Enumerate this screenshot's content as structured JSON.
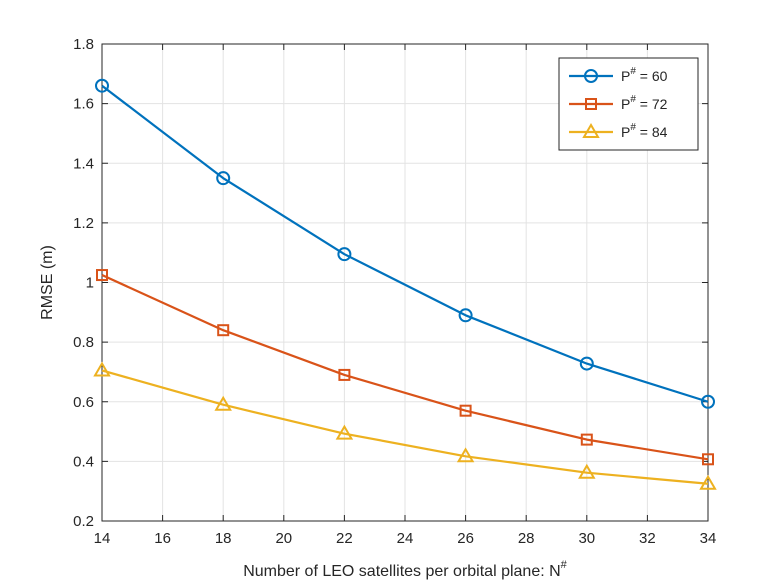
{
  "chart_data": {
    "type": "line",
    "title": "",
    "xlabel": "Number of LEO satellites per orbital plane: N",
    "xlabel_superscript": "#",
    "ylabel": "RMSE (m)",
    "x": [
      14,
      18,
      22,
      26,
      30,
      34
    ],
    "xlim": [
      14,
      34
    ],
    "ylim": [
      0.2,
      1.8
    ],
    "x_ticks": [
      "14",
      "16",
      "18",
      "20",
      "22",
      "24",
      "26",
      "28",
      "30",
      "32",
      "34"
    ],
    "y_ticks": [
      "0.2",
      "0.4",
      "0.6",
      "0.8",
      "1",
      "1.2",
      "1.4",
      "1.6",
      "1.8"
    ],
    "grid": true,
    "legend_position": "top-right",
    "series": [
      {
        "name": "P# = 60",
        "legend_base": "P",
        "legend_sup": "#",
        "legend_rest": " = 60",
        "color": "#0072BD",
        "marker": "circle",
        "values": [
          1.66,
          1.35,
          1.095,
          0.89,
          0.728,
          0.6
        ]
      },
      {
        "name": "P# = 72",
        "legend_base": "P",
        "legend_sup": "#",
        "legend_rest": " = 72",
        "color": "#D95319",
        "marker": "square",
        "values": [
          1.025,
          0.84,
          0.69,
          0.57,
          0.473,
          0.407
        ]
      },
      {
        "name": "P# = 84",
        "legend_base": "P",
        "legend_sup": "#",
        "legend_rest": " = 84",
        "color": "#EDB120",
        "marker": "triangle",
        "values": [
          0.705,
          0.59,
          0.493,
          0.417,
          0.362,
          0.325
        ]
      }
    ]
  }
}
